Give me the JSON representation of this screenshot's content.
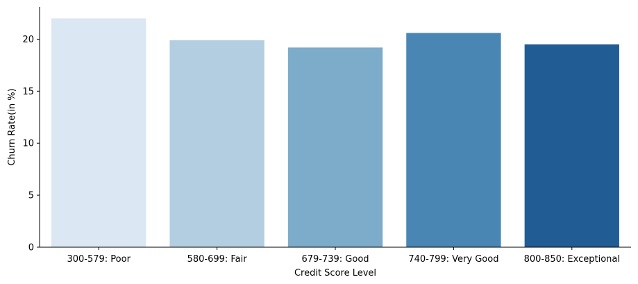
{
  "chart_data": {
    "type": "bar",
    "categories": [
      "300-579: Poor",
      "580-699: Fair",
      "679-739: Good",
      "740-799: Very Good",
      "800-850: Exceptional"
    ],
    "values": [
      22.0,
      19.9,
      19.2,
      20.6,
      19.5
    ],
    "colors": [
      "#dbe7f3",
      "#b3cee1",
      "#7cacca",
      "#4986b3",
      "#225c94"
    ],
    "title": "",
    "xlabel": "Credit Score Level",
    "ylabel": "Churn Rate(in %)",
    "ylim": [
      0,
      23.1
    ],
    "yticks": [
      0,
      5,
      10,
      15,
      20
    ],
    "grid": false,
    "legend": "none"
  }
}
